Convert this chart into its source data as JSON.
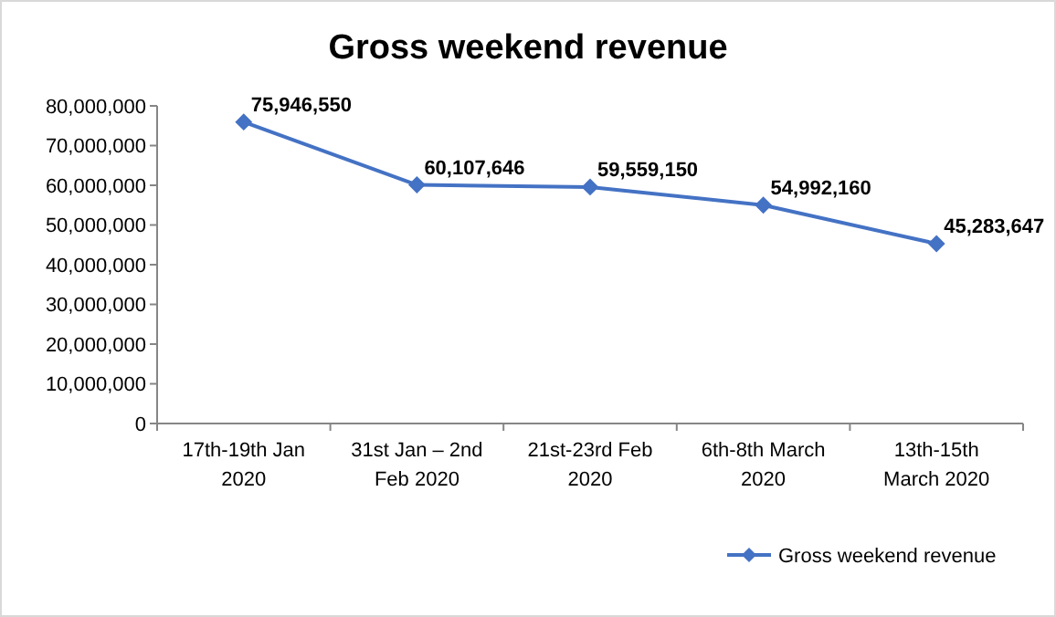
{
  "chart_data": {
    "type": "line",
    "title": "Gross weekend revenue",
    "categories": [
      "17th-19th Jan 2020",
      "31st Jan – 2nd Feb 2020",
      "21st-23rd Feb 2020",
      "6th-8th March 2020",
      "13th-15th March 2020"
    ],
    "series": [
      {
        "name": "Gross weekend revenue",
        "color": "#4472c4",
        "values": [
          75946550,
          60107646,
          59559150,
          54992160,
          45283647
        ],
        "value_labels": [
          "75,946,550",
          "60,107,646",
          "59,559,150",
          "54,992,160",
          "45,283,647"
        ]
      }
    ],
    "ylim": [
      0,
      80000000
    ],
    "yticks": [
      {
        "value": 0,
        "label": "0"
      },
      {
        "value": 10000000,
        "label": "10,000,000"
      },
      {
        "value": 20000000,
        "label": "20,000,000"
      },
      {
        "value": 30000000,
        "label": "30,000,000"
      },
      {
        "value": 40000000,
        "label": "40,000,000"
      },
      {
        "value": 50000000,
        "label": "50,000,000"
      },
      {
        "value": 60000000,
        "label": "60,000,000"
      },
      {
        "value": 70000000,
        "label": "70,000,000"
      },
      {
        "value": 80000000,
        "label": "80,000,000"
      }
    ],
    "legend": "bottom right",
    "marker": "diamond",
    "line_style": "solid",
    "grid": false
  }
}
